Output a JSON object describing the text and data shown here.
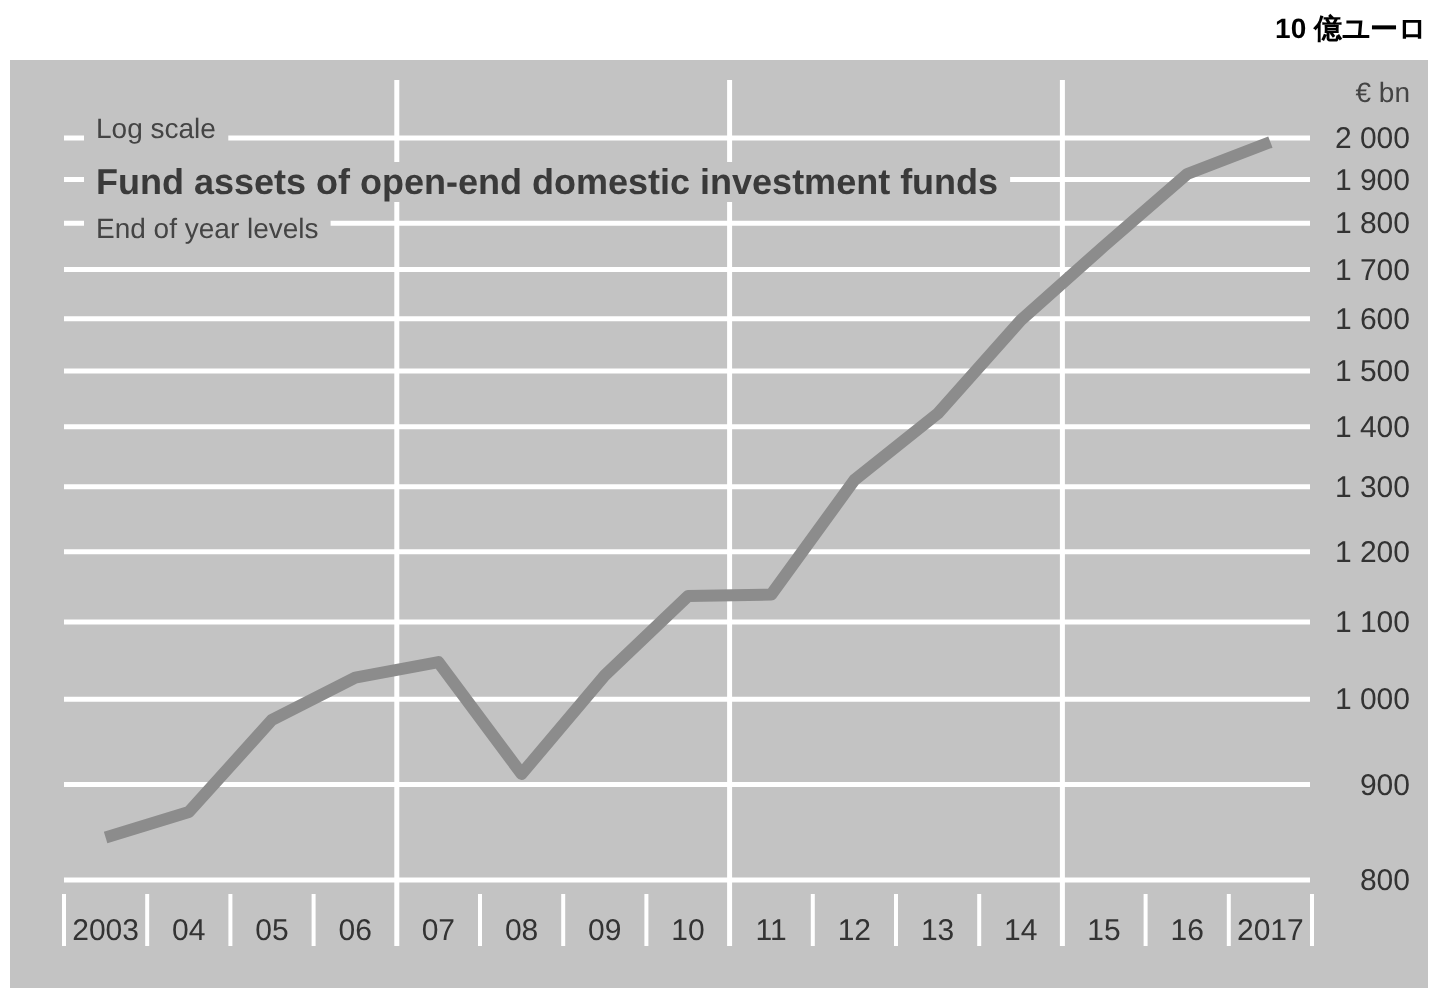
{
  "chart_data": {
    "type": "line",
    "title": "Fund assets of open-end domestic investment funds",
    "subtitle": "End of year levels",
    "ylabel": "€ bn",
    "annotations": [
      "Log scale",
      "10 億ユーロ"
    ],
    "categories": [
      "2003",
      "04",
      "05",
      "06",
      "07",
      "08",
      "09",
      "10",
      "11",
      "12",
      "13",
      "14",
      "15",
      "16",
      "2017"
    ],
    "series": [
      {
        "color": "#8c8c8c",
        "values": [
          843,
          870,
          975,
          1027,
          1047,
          912,
          1030,
          1136,
          1138,
          1311,
          1423,
          1597,
          1750,
          1913,
          1990
        ]
      }
    ],
    "log": "y",
    "ylim": [
      800,
      2000
    ],
    "yticks": [
      {
        "value": 800,
        "label": "800"
      },
      {
        "value": 900,
        "label": "900"
      },
      {
        "value": 1000,
        "label": "1 000"
      },
      {
        "value": 1100,
        "label": "1 100"
      },
      {
        "value": 1200,
        "label": "1 200"
      },
      {
        "value": 1300,
        "label": "1 300"
      },
      {
        "value": 1400,
        "label": "1 400"
      },
      {
        "value": 1500,
        "label": "1 500"
      },
      {
        "value": 1600,
        "label": "1 600"
      },
      {
        "value": 1700,
        "label": "1 700"
      },
      {
        "value": 1800,
        "label": "1 800"
      },
      {
        "value": 1900,
        "label": "1 900"
      },
      {
        "value": 2000,
        "label": "2 000"
      }
    ],
    "grid": true,
    "marker": "none",
    "line_style": "solid"
  }
}
